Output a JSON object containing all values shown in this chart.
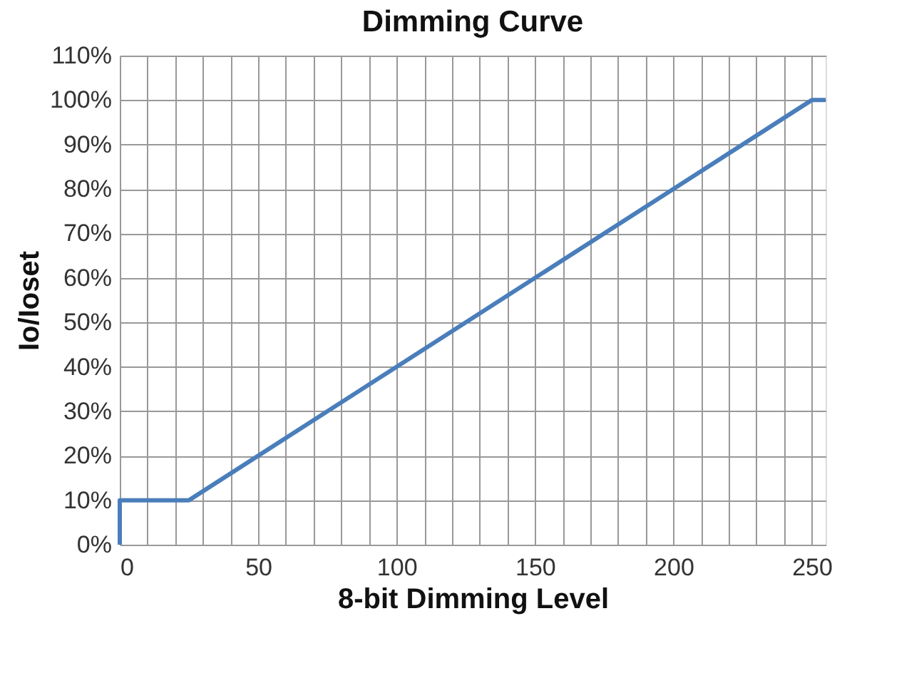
{
  "chart_data": {
    "type": "line",
    "title": "Dimming Curve",
    "xlabel": "8-bit Dimming Level",
    "ylabel": "Io/Ioset",
    "x": [
      0,
      0,
      25,
      250,
      255
    ],
    "series": [
      {
        "color": "#4a7ebb",
        "values": [
          0,
          10,
          10,
          100,
          100
        ]
      }
    ],
    "xlim": [
      0,
      255
    ],
    "xticks": [
      0,
      {
        "value": 10,
        "label": null
      },
      {
        "value": 20,
        "label": null
      },
      {
        "value": 30,
        "label": null
      },
      {
        "value": 40,
        "label": null
      },
      50,
      {
        "value": 60,
        "label": null
      },
      {
        "value": 70,
        "label": null
      },
      {
        "value": 80,
        "label": null
      },
      {
        "value": 90,
        "label": null
      },
      100,
      {
        "value": 110,
        "label": null
      },
      {
        "value": 120,
        "label": null
      },
      {
        "value": 130,
        "label": null
      },
      {
        "value": 140,
        "label": null
      },
      150,
      {
        "value": 160,
        "label": null
      },
      {
        "value": 170,
        "label": null
      },
      {
        "value": 180,
        "label": null
      },
      {
        "value": 190,
        "label": null
      },
      200,
      {
        "value": 210,
        "label": null
      },
      {
        "value": 220,
        "label": null
      },
      {
        "value": 230,
        "label": null
      },
      {
        "value": 240,
        "label": null
      },
      250
    ],
    "ylim": [
      0,
      110
    ],
    "yticks": [
      {
        "value": 0,
        "label": "0%"
      },
      {
        "value": 10,
        "label": "10%"
      },
      {
        "value": 20,
        "label": "20%"
      },
      {
        "value": 30,
        "label": "30%"
      },
      {
        "value": 40,
        "label": "40%"
      },
      {
        "value": 50,
        "label": "50%"
      },
      {
        "value": 60,
        "label": "60%"
      },
      {
        "value": 70,
        "label": "70%"
      },
      {
        "value": 80,
        "label": "80%"
      },
      {
        "value": 90,
        "label": "90%"
      },
      {
        "value": 100,
        "label": "100%"
      },
      {
        "value": 110,
        "label": "110%"
      }
    ],
    "grid": true,
    "marker": "none",
    "line_style": "solid"
  }
}
